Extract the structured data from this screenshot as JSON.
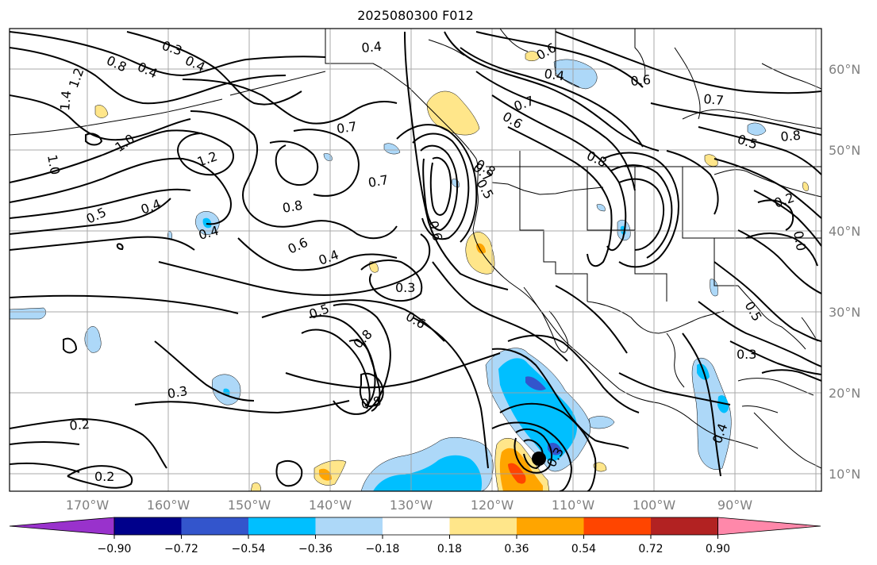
{
  "title": "2025080300 F012",
  "map": {
    "lon_ticks": [
      "170°W",
      "160°W",
      "150°W",
      "140°W",
      "130°W",
      "120°W",
      "110°W",
      "100°W",
      "90°W"
    ],
    "lat_ticks": [
      "60°N",
      "50°N",
      "40°N",
      "30°N",
      "20°N",
      "10°N"
    ],
    "contour_labels": [
      "0.3",
      "0.4",
      "0.8",
      "0.4",
      "1.2",
      "1.4",
      "1.0",
      "1.0",
      "1.2",
      "0.4",
      "0.7",
      "0.7",
      "0.6",
      "0.6",
      "0.7",
      "0.4",
      "0.6",
      "0.5",
      "0.8",
      "0.8",
      "0.5",
      "0.4",
      "0.4",
      "0.8",
      "0.6",
      "0.4",
      "0.3",
      "0.6",
      "0.7",
      "0.2",
      "0.0",
      "0.5",
      "0.7",
      "0.3",
      "0.5",
      "0.6",
      "0.8",
      "0.3",
      "0.2",
      "0.2",
      "0.3",
      "0.8",
      "0.4",
      "0.5",
      "0.8"
    ]
  },
  "colorbar": {
    "tick_labels": [
      "−0.90",
      "−0.72",
      "−0.54",
      "−0.36",
      "−0.18",
      "0.18",
      "0.36",
      "0.54",
      "0.72",
      "0.90"
    ],
    "colors": [
      "#9932cc",
      "#00008b",
      "#3355cc",
      "#00bfff",
      "#add8f8",
      "#ffffff",
      "#ffe68a",
      "#ffa500",
      "#ff4500",
      "#b22222",
      "#ff88aa"
    ]
  },
  "colors": {
    "frame": "#000000",
    "gridline": "#a0a0a0",
    "coast": "#000000",
    "contour": "#000000",
    "label_gray": "#808080",
    "marker": "#000000"
  }
}
